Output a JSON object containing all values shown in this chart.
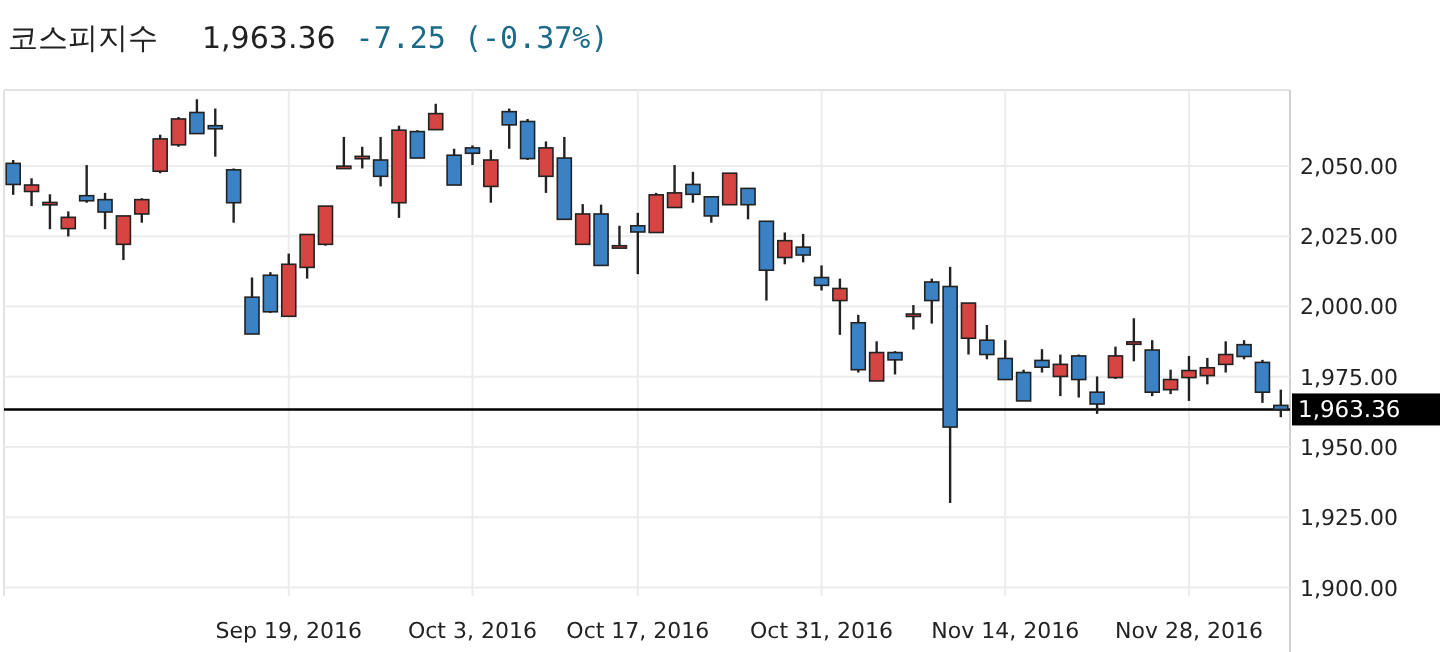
{
  "chart_data": {
    "type": "candlestick",
    "title": "코스피지수",
    "annotations": [
      "1,963.36",
      "-7.25 (-0.37%)"
    ],
    "categories": [
      null,
      null,
      null,
      null,
      null,
      null,
      null,
      null,
      null,
      null,
      null,
      null,
      null,
      null,
      null,
      "Sep 19, 2016",
      null,
      null,
      null,
      null,
      null,
      null,
      null,
      null,
      null,
      "Oct 3, 2016",
      null,
      null,
      null,
      null,
      null,
      null,
      null,
      null,
      "Oct 17, 2016",
      null,
      null,
      null,
      null,
      null,
      null,
      null,
      null,
      null,
      "Oct 31, 2016",
      null,
      null,
      null,
      null,
      null,
      null,
      null,
      null,
      null,
      "Nov 14, 2016",
      null,
      null,
      null,
      null,
      null,
      null,
      null,
      null,
      null,
      "Nov 28, 2016",
      null,
      null,
      null,
      null,
      null
    ],
    "ohlc": [
      [
        2050.9,
        2052.1,
        2039.7,
        2043.4
      ],
      [
        2040.9,
        2045.6,
        2035.7,
        2043.2
      ],
      [
        2036.8,
        2039.9,
        2027.5,
        2037.0
      ],
      [
        2027.7,
        2033.8,
        2024.9,
        2031.7
      ],
      [
        2039.4,
        2050.3,
        2036.9,
        2037.6
      ],
      [
        2038.0,
        2040.4,
        2027.5,
        2033.6
      ],
      [
        2022.1,
        2032.2,
        2016.5,
        2032.2
      ],
      [
        2032.9,
        2038.5,
        2029.8,
        2038.0
      ],
      [
        2048.1,
        2061.1,
        2047.4,
        2059.6
      ],
      [
        2057.5,
        2067.4,
        2056.8,
        2066.7
      ],
      [
        2069.0,
        2073.7,
        2061.5,
        2061.5
      ],
      [
        2064.3,
        2070.4,
        2053.3,
        2063.2
      ],
      [
        2048.6,
        2049.1,
        2029.8,
        2036.9
      ],
      [
        2003.3,
        2010.3,
        1990.2,
        1990.2
      ],
      [
        2011.1,
        2012.2,
        1997.7,
        1998.1
      ],
      [
        1996.5,
        2018.8,
        1996.5,
        2015.0
      ],
      [
        2013.9,
        2025.6,
        2009.9,
        2025.6
      ],
      [
        2022.1,
        2035.7,
        2021.6,
        2035.7
      ],
      [
        2049.7,
        2060.3,
        2049.1,
        2049.9
      ],
      [
        2053.2,
        2056.8,
        2049.1,
        2053.4
      ],
      [
        2052.1,
        2060.3,
        2042.7,
        2046.3
      ],
      [
        2036.9,
        2064.3,
        2031.5,
        2062.7
      ],
      [
        2062.2,
        2062.7,
        2052.8,
        2052.8
      ],
      [
        2062.9,
        2072.1,
        2062.9,
        2068.6
      ],
      [
        2053.8,
        2056.1,
        2043.2,
        2043.2
      ],
      [
        2056.4,
        2057.3,
        2050.3,
        2054.5
      ],
      [
        2042.7,
        2055.7,
        2036.9,
        2052.1
      ],
      [
        2069.3,
        2070.4,
        2056.1,
        2064.6
      ],
      [
        2065.8,
        2066.7,
        2052.1,
        2052.6
      ],
      [
        2046.3,
        2058.7,
        2040.4,
        2056.4
      ],
      [
        2052.8,
        2060.3,
        2031.0,
        2031.0
      ],
      [
        2022.1,
        2036.4,
        2022.1,
        2032.9
      ],
      [
        2032.9,
        2036.2,
        2014.6,
        2014.6
      ],
      [
        2021.4,
        2028.7,
        2021.1,
        2021.6
      ],
      [
        2028.7,
        2033.3,
        2011.5,
        2026.5
      ],
      [
        2026.3,
        2040.4,
        2026.3,
        2039.7
      ],
      [
        2035.2,
        2050.3,
        2035.2,
        2040.4
      ],
      [
        2043.4,
        2047.9,
        2036.9,
        2039.9
      ],
      [
        2039.0,
        2039.0,
        2029.8,
        2032.2
      ],
      [
        2036.2,
        2047.4,
        2036.2,
        2047.4
      ],
      [
        2042.0,
        2042.0,
        2031.0,
        2036.2
      ],
      [
        2030.3,
        2030.3,
        2002.1,
        2012.9
      ],
      [
        2017.4,
        2026.3,
        2015.0,
        2023.4
      ],
      [
        2021.1,
        2025.8,
        2015.7,
        2018.3
      ],
      [
        2010.3,
        2014.6,
        2005.7,
        2007.5
      ],
      [
        2002.1,
        2009.9,
        1989.9,
        2006.4
      ],
      [
        1994.2,
        1997.0,
        1976.5,
        1977.5
      ],
      [
        1973.5,
        1987.6,
        1973.5,
        1983.6
      ],
      [
        1983.6,
        1984.1,
        1975.8,
        1981.0
      ],
      [
        1997.0,
        2000.5,
        1991.8,
        1997.3
      ],
      [
        2008.7,
        2009.9,
        1993.9,
        2002.1
      ],
      [
        2007.1,
        2014.1,
        1930.1,
        1957.1
      ],
      [
        1988.7,
        2001.2,
        1982.9,
        2001.2
      ],
      [
        1988.0,
        1993.4,
        1981.2,
        1982.9
      ],
      [
        1981.5,
        1988.0,
        1974.0,
        1974.0
      ],
      [
        1976.5,
        1977.5,
        1966.4,
        1966.4
      ],
      [
        1980.8,
        1984.8,
        1976.5,
        1978.4
      ],
      [
        1975.1,
        1982.9,
        1968.1,
        1979.4
      ],
      [
        1982.4,
        1982.9,
        1967.6,
        1974.0
      ],
      [
        1969.5,
        1975.1,
        1961.8,
        1965.3
      ],
      [
        1974.7,
        1985.7,
        1974.2,
        1982.4
      ],
      [
        1987.1,
        1995.8,
        1980.5,
        1987.4
      ],
      [
        1984.5,
        1988.0,
        1968.1,
        1969.5
      ],
      [
        1970.4,
        1977.5,
        1968.8,
        1974.0
      ],
      [
        1974.7,
        1982.4,
        1966.4,
        1977.2
      ],
      [
        1975.4,
        1981.7,
        1972.3,
        1978.2
      ],
      [
        1979.4,
        1987.6,
        1976.5,
        1982.9
      ],
      [
        1986.4,
        1988.0,
        1981.2,
        1982.2
      ],
      [
        1980.1,
        1981.0,
        1965.7,
        1969.5
      ],
      [
        1964.8,
        1970.4,
        1960.6,
        1963.36
      ]
    ],
    "colors": [
      "#3a82c4",
      "#d64541",
      "#d64541",
      "#d64541",
      "#3a82c4",
      "#3a82c4",
      "#d64541",
      "#d64541",
      "#d64541",
      "#d64541",
      "#3a82c4",
      "#3a82c4",
      "#3a82c4",
      "#3a82c4",
      "#3a82c4",
      "#d64541",
      "#d64541",
      "#d64541",
      "#d64541",
      "#d64541",
      "#3a82c4",
      "#d64541",
      "#3a82c4",
      "#d64541",
      "#3a82c4",
      "#3a82c4",
      "#d64541",
      "#3a82c4",
      "#3a82c4",
      "#d64541",
      "#3a82c4",
      "#d64541",
      "#3a82c4",
      "#d64541",
      "#3a82c4",
      "#d64541",
      "#d64541",
      "#3a82c4",
      "#3a82c4",
      "#d64541",
      "#3a82c4",
      "#3a82c4",
      "#d64541",
      "#3a82c4",
      "#3a82c4",
      "#d64541",
      "#3a82c4",
      "#d64541",
      "#3a82c4",
      "#d64541",
      "#3a82c4",
      "#3a82c4",
      "#d64541",
      "#3a82c4",
      "#3a82c4",
      "#3a82c4",
      "#3a82c4",
      "#d64541",
      "#3a82c4",
      "#3a82c4",
      "#d64541",
      "#d64541",
      "#3a82c4",
      "#d64541",
      "#d64541",
      "#d64541",
      "#d64541",
      "#3a82c4",
      "#3a82c4",
      "#3a82c4"
    ],
    "ylim": [
      1897,
      2077
    ],
    "yticks": [
      {
        "value": 1900,
        "label": "1,900.00"
      },
      {
        "value": 1925,
        "label": "1,925.00"
      },
      {
        "value": 1950,
        "label": "1,950.00"
      },
      {
        "value": 1975,
        "label": "1,975.00"
      },
      {
        "value": 2000,
        "label": "2,000.00"
      },
      {
        "value": 2025,
        "label": "2,025.00"
      },
      {
        "value": 2050,
        "label": "2,050.00"
      }
    ],
    "ref_lines": [
      {
        "axis": "y",
        "value": 1963.36,
        "label": "1,963.36",
        "color": "#000000"
      }
    ],
    "grid": true
  }
}
